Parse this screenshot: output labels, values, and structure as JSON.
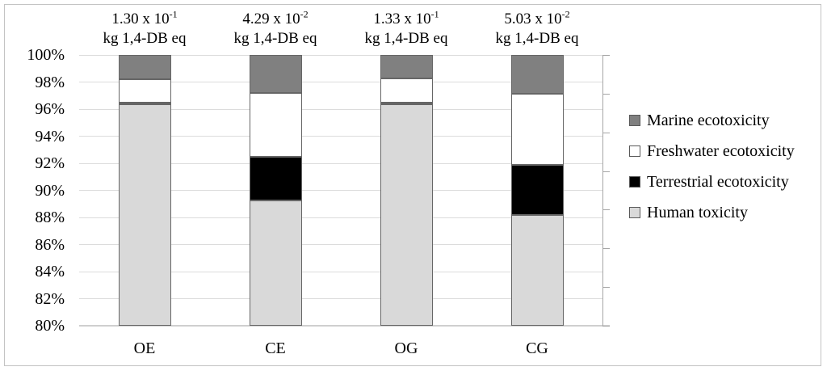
{
  "figure": {
    "background": "#ffffff",
    "border_color": "#c3c3c3"
  },
  "chart_data": {
    "type": "bar",
    "stacked": true,
    "percent_stacked": true,
    "title": "",
    "xlabel": "",
    "ylabel": "",
    "categories": [
      "OE",
      "CE",
      "OG",
      "CG"
    ],
    "series": [
      {
        "name": "Human toxicity",
        "color": "#d9d9d9",
        "values": [
          96.37,
          89.25,
          96.37,
          88.15
        ]
      },
      {
        "name": "Terrestrial ecotoxicity",
        "color": "#000000",
        "values": [
          0.08,
          3.2,
          0.08,
          3.75
        ]
      },
      {
        "name": "Freshwater ecotoxicity",
        "color": "#ffffff",
        "values": [
          1.75,
          4.75,
          1.8,
          5.25
        ]
      },
      {
        "name": "Marine ecotoxicity",
        "color": "#808080",
        "values": [
          1.8,
          2.8,
          1.75,
          2.85
        ]
      }
    ],
    "bar_annotations": [
      {
        "mantissa": "1.30 x 10",
        "exponent": "-1",
        "unit": "kg 1,4-DB eq"
      },
      {
        "mantissa": "4.29 x 10",
        "exponent": "-2",
        "unit": "kg 1,4-DB eq"
      },
      {
        "mantissa": "1.33 x 10",
        "exponent": "-1",
        "unit": "kg 1,4-DB eq"
      },
      {
        "mantissa": "5.03 x 10",
        "exponent": "-2",
        "unit": "kg 1,4-DB eq"
      }
    ],
    "y_axis": {
      "min": 80,
      "max": 100,
      "step": 2,
      "tick_labels": [
        "100%",
        "98%",
        "96%",
        "94%",
        "92%",
        "90%",
        "88%",
        "86%",
        "84%",
        "82%",
        "80%"
      ]
    },
    "right_axis_tick_count": 8,
    "gridlines": true,
    "gridline_color": "#dcdcdc",
    "axis_line_color": "#cfcfcf",
    "right_axis_color": "#a6a6a6",
    "segment_border_color": "#666666",
    "legend_position": "right"
  },
  "legend": {
    "items": [
      {
        "label": "Marine ecotoxicity",
        "color": "#808080"
      },
      {
        "label": "Freshwater ecotoxicity",
        "color": "#ffffff"
      },
      {
        "label": "Terrestrial ecotoxicity",
        "color": "#000000"
      },
      {
        "label": "Human toxicity",
        "color": "#d9d9d9"
      }
    ]
  }
}
